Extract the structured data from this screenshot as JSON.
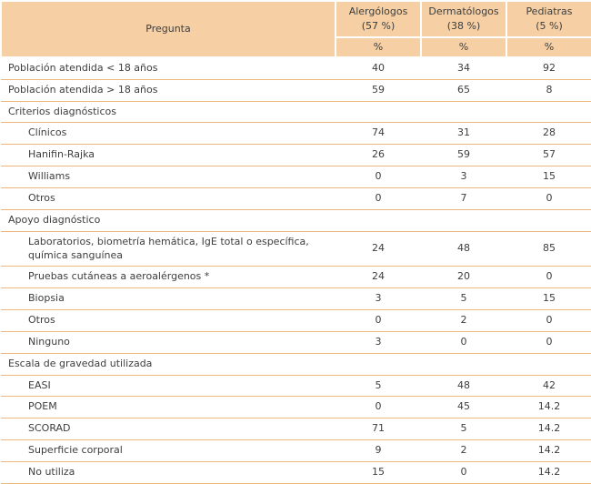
{
  "table": {
    "header": {
      "pregunta_label": "Pregunta",
      "columns": [
        {
          "title": "Alergólogos",
          "subtitle": "(57 %)",
          "unit": "%"
        },
        {
          "title": "Dermatólogos",
          "subtitle": "(38 %)",
          "unit": "%"
        },
        {
          "title": "Pediatras",
          "subtitle": "(5 %)",
          "unit": "%"
        }
      ]
    },
    "rows": [
      {
        "label": "Población atendida < 18 años",
        "indent": false,
        "values": [
          "40",
          "34",
          "92"
        ]
      },
      {
        "label": "Población atendida > 18 años",
        "indent": false,
        "values": [
          "59",
          "65",
          "8"
        ]
      },
      {
        "label": "Criterios diagnósticos",
        "indent": false,
        "values": [
          "",
          "",
          ""
        ]
      },
      {
        "label": "Clínicos",
        "indent": true,
        "values": [
          "74",
          "31",
          "28"
        ]
      },
      {
        "label": "Hanifin-Rajka",
        "indent": true,
        "values": [
          "26",
          "59",
          "57"
        ]
      },
      {
        "label": "Williams",
        "indent": true,
        "values": [
          "0",
          "3",
          "15"
        ]
      },
      {
        "label": "Otros",
        "indent": true,
        "values": [
          "0",
          "7",
          "0"
        ]
      },
      {
        "label": "Apoyo diagnóstico",
        "indent": false,
        "values": [
          "",
          "",
          ""
        ]
      },
      {
        "label": "Laboratorios, biometría hemática, IgE total o específica, química sanguínea",
        "indent": true,
        "values": [
          "24",
          "48",
          "85"
        ]
      },
      {
        "label": "Pruebas cutáneas a aeroalérgenos *",
        "indent": true,
        "values": [
          "24",
          "20",
          "0"
        ]
      },
      {
        "label": "Biopsia",
        "indent": true,
        "values": [
          "3",
          "5",
          "15"
        ]
      },
      {
        "label": "Otros",
        "indent": true,
        "values": [
          "0",
          "2",
          "0"
        ]
      },
      {
        "label": "Ninguno",
        "indent": true,
        "values": [
          "3",
          "0",
          "0"
        ]
      },
      {
        "label": "Escala de gravedad utilizada",
        "indent": false,
        "values": [
          "",
          "",
          ""
        ]
      },
      {
        "label": "EASI",
        "indent": true,
        "values": [
          "5",
          "48",
          "42"
        ]
      },
      {
        "label": "POEM",
        "indent": true,
        "values": [
          "0",
          "45",
          "14.2"
        ]
      },
      {
        "label": "SCORAD",
        "indent": true,
        "values": [
          "71",
          "5",
          "14.2"
        ]
      },
      {
        "label": "Superficie corporal",
        "indent": true,
        "values": [
          "9",
          "2",
          "14.2"
        ]
      },
      {
        "label": "No utiliza",
        "indent": true,
        "values": [
          "15",
          "0",
          "14.2"
        ]
      }
    ],
    "style": {
      "header_bg": "#f6d0a4",
      "row_border": "#ecb87e"
    }
  }
}
